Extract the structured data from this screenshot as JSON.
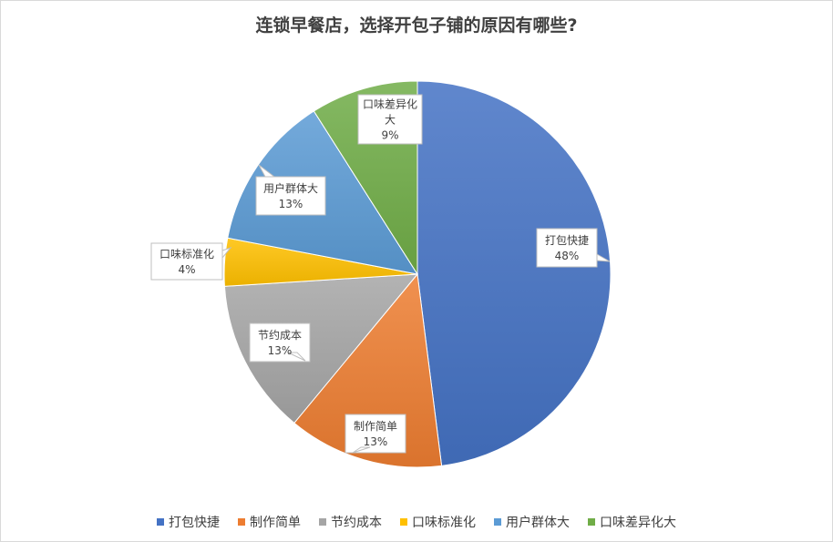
{
  "chart_data": {
    "type": "pie",
    "title": "连锁早餐店，选择开包子铺的原因有哪些?",
    "categories": [
      "打包快捷",
      "制作简单",
      "节约成本",
      "口味标准化",
      "用户群体大",
      "口味差异化大"
    ],
    "values": [
      48,
      13,
      13,
      4,
      13,
      9
    ],
    "data_labels": [
      "48%",
      "13%",
      "13%",
      "4%",
      "13%",
      "9%"
    ],
    "colors": [
      "#4472C4",
      "#ED7D31",
      "#A5A5A5",
      "#FFC000",
      "#5B9BD5",
      "#70AD47"
    ],
    "legend_position": "bottom",
    "start_angle_deg": 0,
    "direction": "clockwise"
  }
}
